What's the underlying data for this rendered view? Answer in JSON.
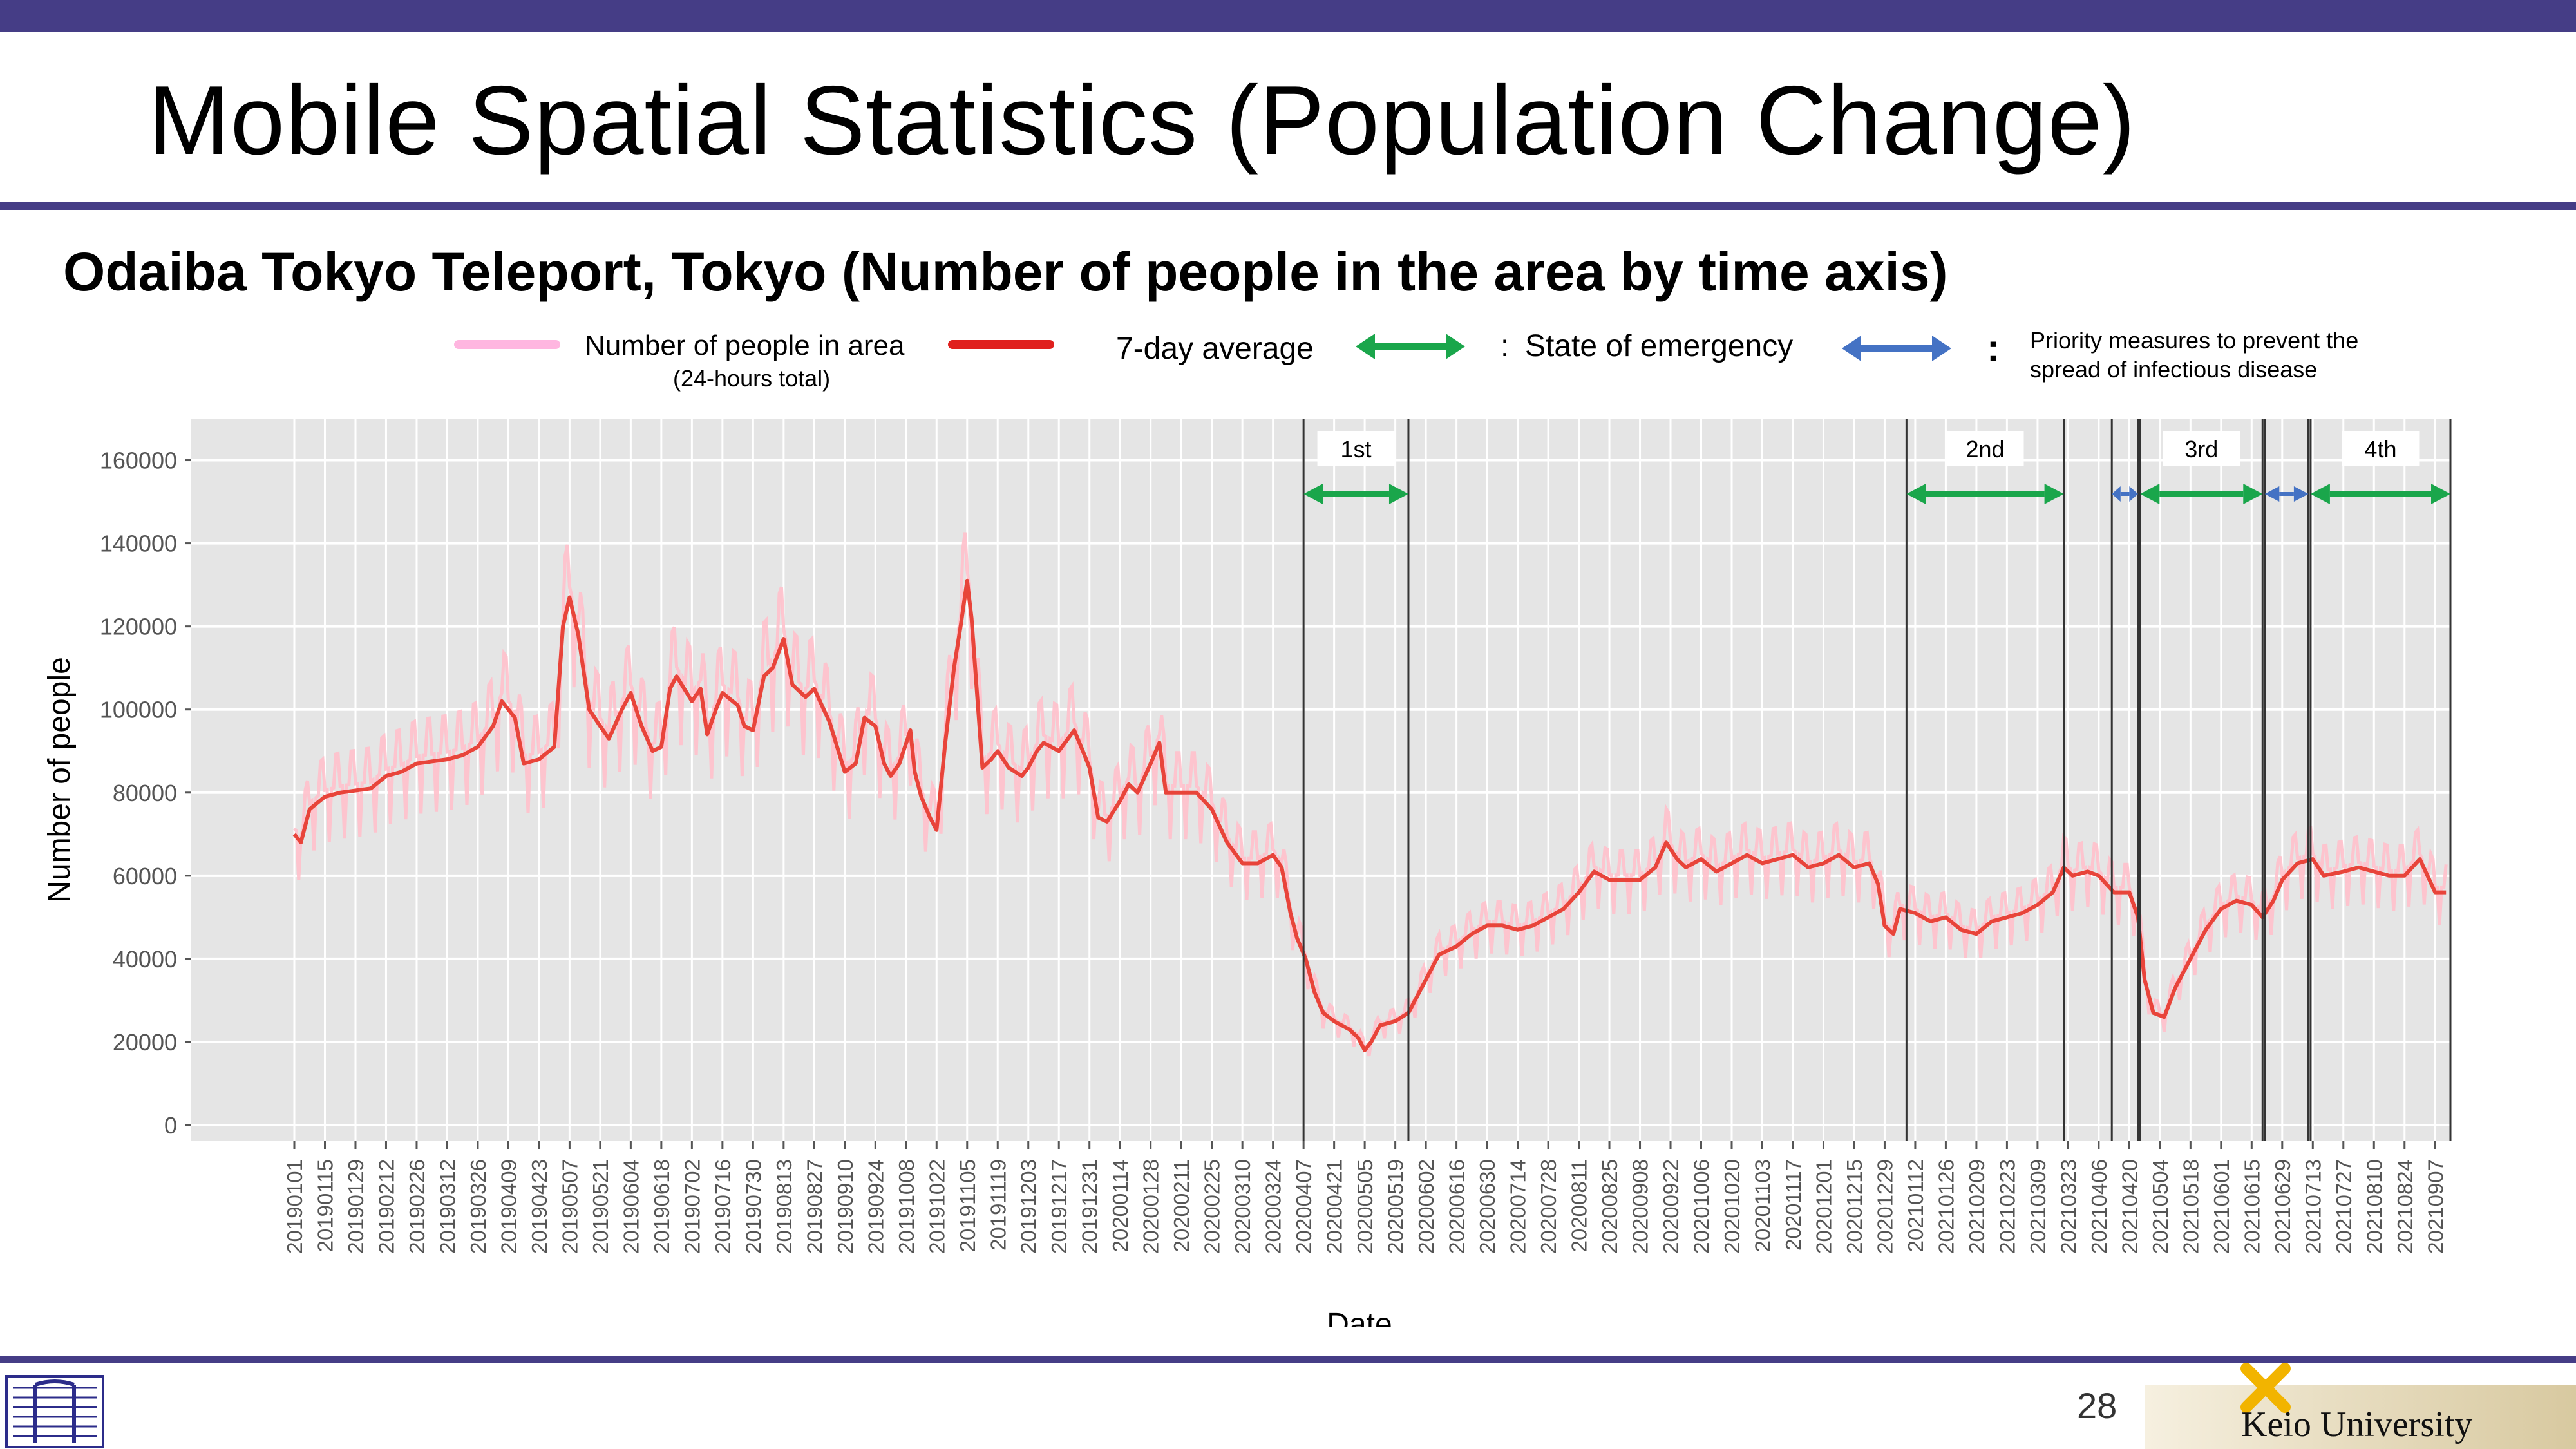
{
  "slide": {
    "title": "Mobile Spatial Statistics (Population Change)",
    "subtitle": "Odaiba Tokyo Teleport, Tokyo (Number of people in the area by time axis)",
    "page_number": "28",
    "university": "Keio University"
  },
  "legend": {
    "people_label": "Number of people in area",
    "people_sublabel": "(24-hours total)",
    "avg_label": "7-day average",
    "sep1": ":",
    "emergency_label": "State of emergency",
    "sep2": ":",
    "priority_label_1": "Priority measures to prevent the",
    "priority_label_2": "spread of infectious disease"
  },
  "colors": {
    "brand_bar": "#453d86",
    "raw_series": "#ffc0cb",
    "avg_series": "#e8443a",
    "emergency_arrow": "#1aa64b",
    "priority_arrow": "#4472c4",
    "plot_bg": "#e5e5e5",
    "grid": "#ffffff"
  },
  "chart_data": {
    "type": "line",
    "xlabel": "Date",
    "ylabel": "Number of people",
    "ylim": [
      0,
      170000
    ],
    "yticks": [
      0,
      20000,
      40000,
      60000,
      80000,
      100000,
      120000,
      140000,
      160000
    ],
    "ytick_labels": [
      "0",
      "20000",
      "40000",
      "60000",
      "80000",
      "100000",
      "120000",
      "140000",
      "160000"
    ],
    "x_start": "2019-01-01",
    "x_end": "2021-09-14",
    "xtick_labels": [
      "20190101",
      "20190115",
      "20190129",
      "20190212",
      "20190226",
      "20190312",
      "20190326",
      "20190409",
      "20190423",
      "20190507",
      "20190521",
      "20190604",
      "20190618",
      "20190702",
      "20190716",
      "20190730",
      "20190813",
      "20190827",
      "20190910",
      "20190924",
      "20191008",
      "20191022",
      "20191105",
      "20191119",
      "20191203",
      "20191217",
      "20191231",
      "20200114",
      "20200128",
      "20200211",
      "20200225",
      "20200310",
      "20200324",
      "20200407",
      "20200421",
      "20200505",
      "20200519",
      "20200602",
      "20200616",
      "20200630",
      "20200714",
      "20200728",
      "20200811",
      "20200825",
      "20200908",
      "20200922",
      "20201006",
      "20201020",
      "20201103",
      "20201117",
      "20201201",
      "20201215",
      "20201229",
      "20210112",
      "20210126",
      "20210209",
      "20210223",
      "20210309",
      "20210323",
      "20210406",
      "20210420",
      "20210504",
      "20210518",
      "20210601",
      "20210615",
      "20210629",
      "20210713",
      "20210727",
      "20210810",
      "20210824",
      "20210907"
    ],
    "grid": true,
    "series": [
      {
        "name": "7-day average",
        "points": [
          [
            "2019-01-01",
            70000
          ],
          [
            "2019-01-04",
            68000
          ],
          [
            "2019-01-08",
            76000
          ],
          [
            "2019-01-15",
            79000
          ],
          [
            "2019-01-22",
            80000
          ],
          [
            "2019-01-29",
            80500
          ],
          [
            "2019-02-05",
            81000
          ],
          [
            "2019-02-12",
            84000
          ],
          [
            "2019-02-19",
            85000
          ],
          [
            "2019-02-26",
            87000
          ],
          [
            "2019-03-05",
            87500
          ],
          [
            "2019-03-12",
            88000
          ],
          [
            "2019-03-19",
            89000
          ],
          [
            "2019-03-26",
            91000
          ],
          [
            "2019-04-02",
            96000
          ],
          [
            "2019-04-06",
            102000
          ],
          [
            "2019-04-12",
            98000
          ],
          [
            "2019-04-16",
            87000
          ],
          [
            "2019-04-23",
            88000
          ],
          [
            "2019-04-30",
            91000
          ],
          [
            "2019-05-04",
            120000
          ],
          [
            "2019-05-07",
            127000
          ],
          [
            "2019-05-11",
            118000
          ],
          [
            "2019-05-16",
            100000
          ],
          [
            "2019-05-21",
            96000
          ],
          [
            "2019-05-25",
            93000
          ],
          [
            "2019-05-31",
            100000
          ],
          [
            "2019-06-04",
            104000
          ],
          [
            "2019-06-09",
            96000
          ],
          [
            "2019-06-14",
            90000
          ],
          [
            "2019-06-18",
            91000
          ],
          [
            "2019-06-22",
            105000
          ],
          [
            "2019-06-25",
            108000
          ],
          [
            "2019-07-02",
            102000
          ],
          [
            "2019-07-06",
            105000
          ],
          [
            "2019-07-09",
            94000
          ],
          [
            "2019-07-13",
            100000
          ],
          [
            "2019-07-16",
            104000
          ],
          [
            "2019-07-23",
            101000
          ],
          [
            "2019-07-26",
            96000
          ],
          [
            "2019-07-30",
            95000
          ],
          [
            "2019-08-04",
            108000
          ],
          [
            "2019-08-08",
            110000
          ],
          [
            "2019-08-13",
            117000
          ],
          [
            "2019-08-17",
            106000
          ],
          [
            "2019-08-23",
            103000
          ],
          [
            "2019-08-27",
            105000
          ],
          [
            "2019-09-03",
            97000
          ],
          [
            "2019-09-10",
            85000
          ],
          [
            "2019-09-15",
            87000
          ],
          [
            "2019-09-19",
            98000
          ],
          [
            "2019-09-24",
            96000
          ],
          [
            "2019-09-28",
            87000
          ],
          [
            "2019-10-01",
            84000
          ],
          [
            "2019-10-05",
            87000
          ],
          [
            "2019-10-10",
            95000
          ],
          [
            "2019-10-12",
            85000
          ],
          [
            "2019-10-15",
            79000
          ],
          [
            "2019-10-19",
            74000
          ],
          [
            "2019-10-22",
            71000
          ],
          [
            "2019-10-26",
            92000
          ],
          [
            "2019-10-30",
            110000
          ],
          [
            "2019-11-02",
            120000
          ],
          [
            "2019-11-05",
            131000
          ],
          [
            "2019-11-07",
            122000
          ],
          [
            "2019-11-12",
            86000
          ],
          [
            "2019-11-16",
            88000
          ],
          [
            "2019-11-19",
            90000
          ],
          [
            "2019-11-24",
            86000
          ],
          [
            "2019-11-30",
            84000
          ],
          [
            "2019-12-03",
            86000
          ],
          [
            "2019-12-07",
            90000
          ],
          [
            "2019-12-10",
            92000
          ],
          [
            "2019-12-17",
            90000
          ],
          [
            "2019-12-24",
            95000
          ],
          [
            "2019-12-28",
            90000
          ],
          [
            "2019-12-31",
            86000
          ],
          [
            "2020-01-04",
            74000
          ],
          [
            "2020-01-08",
            73000
          ],
          [
            "2020-01-14",
            78000
          ],
          [
            "2020-01-18",
            82000
          ],
          [
            "2020-01-22",
            80000
          ],
          [
            "2020-01-28",
            87000
          ],
          [
            "2020-02-01",
            92000
          ],
          [
            "2020-02-04",
            80000
          ],
          [
            "2020-02-11",
            80000
          ],
          [
            "2020-02-18",
            80000
          ],
          [
            "2020-02-25",
            76000
          ],
          [
            "2020-03-03",
            68000
          ],
          [
            "2020-03-10",
            63000
          ],
          [
            "2020-03-17",
            63000
          ],
          [
            "2020-03-24",
            65000
          ],
          [
            "2020-03-28",
            62000
          ],
          [
            "2020-04-01",
            51000
          ],
          [
            "2020-04-04",
            45000
          ],
          [
            "2020-04-08",
            40000
          ],
          [
            "2020-04-12",
            32000
          ],
          [
            "2020-04-16",
            27000
          ],
          [
            "2020-04-21",
            25000
          ],
          [
            "2020-04-28",
            23000
          ],
          [
            "2020-05-02",
            21000
          ],
          [
            "2020-05-05",
            18000
          ],
          [
            "2020-05-08",
            20000
          ],
          [
            "2020-05-12",
            24000
          ],
          [
            "2020-05-19",
            25000
          ],
          [
            "2020-05-25",
            27000
          ],
          [
            "2020-06-01",
            34000
          ],
          [
            "2020-06-08",
            41000
          ],
          [
            "2020-06-16",
            43000
          ],
          [
            "2020-06-23",
            46000
          ],
          [
            "2020-06-30",
            48000
          ],
          [
            "2020-07-07",
            48000
          ],
          [
            "2020-07-14",
            47000
          ],
          [
            "2020-07-21",
            48000
          ],
          [
            "2020-07-28",
            50000
          ],
          [
            "2020-08-04",
            52000
          ],
          [
            "2020-08-11",
            56000
          ],
          [
            "2020-08-18",
            61000
          ],
          [
            "2020-08-25",
            59000
          ],
          [
            "2020-09-01",
            59000
          ],
          [
            "2020-09-08",
            59000
          ],
          [
            "2020-09-15",
            62000
          ],
          [
            "2020-09-20",
            68000
          ],
          [
            "2020-09-25",
            64000
          ],
          [
            "2020-09-29",
            62000
          ],
          [
            "2020-10-06",
            64000
          ],
          [
            "2020-10-13",
            61000
          ],
          [
            "2020-10-20",
            63000
          ],
          [
            "2020-10-27",
            65000
          ],
          [
            "2020-11-03",
            63000
          ],
          [
            "2020-11-10",
            64000
          ],
          [
            "2020-11-17",
            65000
          ],
          [
            "2020-11-24",
            62000
          ],
          [
            "2020-12-01",
            63000
          ],
          [
            "2020-12-08",
            65000
          ],
          [
            "2020-12-15",
            62000
          ],
          [
            "2020-12-22",
            63000
          ],
          [
            "2020-12-26",
            58000
          ],
          [
            "2020-12-29",
            48000
          ],
          [
            "2021-01-02",
            46000
          ],
          [
            "2021-01-05",
            52000
          ],
          [
            "2021-01-12",
            51000
          ],
          [
            "2021-01-19",
            49000
          ],
          [
            "2021-01-26",
            50000
          ],
          [
            "2021-02-02",
            47000
          ],
          [
            "2021-02-09",
            46000
          ],
          [
            "2021-02-16",
            49000
          ],
          [
            "2021-02-23",
            50000
          ],
          [
            "2021-03-02",
            51000
          ],
          [
            "2021-03-09",
            53000
          ],
          [
            "2021-03-16",
            56000
          ],
          [
            "2021-03-21",
            62000
          ],
          [
            "2021-03-25",
            60000
          ],
          [
            "2021-04-01",
            61000
          ],
          [
            "2021-04-06",
            60000
          ],
          [
            "2021-04-13",
            56000
          ],
          [
            "2021-04-20",
            56000
          ],
          [
            "2021-04-24",
            50000
          ],
          [
            "2021-04-27",
            35000
          ],
          [
            "2021-05-01",
            27000
          ],
          [
            "2021-05-06",
            26000
          ],
          [
            "2021-05-11",
            33000
          ],
          [
            "2021-05-18",
            40000
          ],
          [
            "2021-05-25",
            47000
          ],
          [
            "2021-06-01",
            52000
          ],
          [
            "2021-06-08",
            54000
          ],
          [
            "2021-06-15",
            53000
          ],
          [
            "2021-06-20",
            50000
          ],
          [
            "2021-06-25",
            54000
          ],
          [
            "2021-06-29",
            59000
          ],
          [
            "2021-07-06",
            63000
          ],
          [
            "2021-07-13",
            64000
          ],
          [
            "2021-07-18",
            60000
          ],
          [
            "2021-07-27",
            61000
          ],
          [
            "2021-08-03",
            62000
          ],
          [
            "2021-08-10",
            61000
          ],
          [
            "2021-08-17",
            60000
          ],
          [
            "2021-08-24",
            60000
          ],
          [
            "2021-08-31",
            64000
          ],
          [
            "2021-09-07",
            56000
          ],
          [
            "2021-09-12",
            56000
          ]
        ]
      }
    ],
    "events": [
      {
        "label": "1st",
        "kind": "emergency",
        "start": "2020-04-07",
        "end": "2020-05-25"
      },
      {
        "label": "2nd",
        "kind": "emergency",
        "start": "2021-01-08",
        "end": "2021-03-21"
      },
      {
        "label": "",
        "kind": "priority",
        "start": "2021-04-12",
        "end": "2021-04-24"
      },
      {
        "label": "3rd",
        "kind": "emergency",
        "start": "2021-04-25",
        "end": "2021-06-20"
      },
      {
        "label": "",
        "kind": "priority",
        "start": "2021-06-21",
        "end": "2021-07-11"
      },
      {
        "label": "4th",
        "kind": "emergency",
        "start": "2021-07-12",
        "end": "2021-09-14"
      }
    ]
  }
}
